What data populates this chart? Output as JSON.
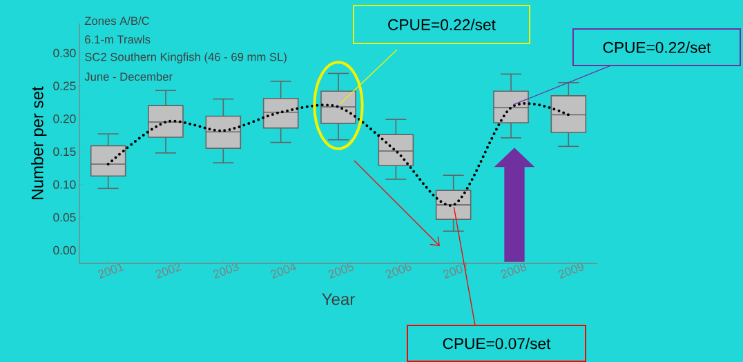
{
  "chart_data": {
    "type": "box",
    "categories": [
      "2001",
      "2002",
      "2003",
      "2004",
      "2005",
      "2006",
      "2007",
      "2008",
      "2009"
    ],
    "xlabel": "Year",
    "ylabel": "Number per set",
    "ylim": [
      -0.02,
      0.345
    ],
    "yticks": [
      {
        "value": 0,
        "label": "0.00"
      },
      {
        "value": 0.05,
        "label": "0.05"
      },
      {
        "value": 0.1,
        "label": "0.10"
      },
      {
        "value": 0.15,
        "label": "0.15"
      },
      {
        "value": 0.2,
        "label": "0.20"
      },
      {
        "value": 0.25,
        "label": "0.25"
      },
      {
        "value": 0.3,
        "label": "0.30"
      }
    ],
    "series": [
      {
        "type": "box",
        "color": "#c0c0c0",
        "boxes": [
          {
            "low": 0.094,
            "q1": 0.113,
            "median": 0.131,
            "q3": 0.159,
            "high": 0.177
          },
          {
            "low": 0.148,
            "q1": 0.172,
            "median": 0.195,
            "q3": 0.22,
            "high": 0.243
          },
          {
            "low": 0.133,
            "q1": 0.155,
            "median": 0.18,
            "q3": 0.204,
            "high": 0.23
          },
          {
            "low": 0.164,
            "q1": 0.186,
            "median": 0.21,
            "q3": 0.231,
            "high": 0.257
          },
          {
            "low": 0.168,
            "q1": 0.193,
            "median": 0.218,
            "q3": 0.242,
            "high": 0.269
          },
          {
            "low": 0.108,
            "q1": 0.129,
            "median": 0.151,
            "q3": 0.176,
            "high": 0.199
          },
          {
            "low": 0.029,
            "q1": 0.047,
            "median": 0.069,
            "q3": 0.091,
            "high": 0.114
          },
          {
            "low": 0.171,
            "q1": 0.194,
            "median": 0.217,
            "q3": 0.242,
            "high": 0.268
          },
          {
            "low": 0.158,
            "q1": 0.179,
            "median": 0.206,
            "q3": 0.235,
            "high": 0.255
          }
        ]
      },
      {
        "type": "line",
        "color": "#000000",
        "line_style": "dotted",
        "values": [
          0.131,
          0.195,
          0.182,
          0.21,
          0.218,
          0.151,
          0.069,
          0.217,
          0.206
        ]
      }
    ],
    "annotations": [
      "Zones A/B/C",
      "6.1-m Trawls",
      "SC2 Southern Kingfish (46 - 69 mm SL)",
      "June - December",
      {
        "text": "CPUE=0.22/set",
        "x": "2005",
        "y": 0.22
      },
      {
        "text": "CPUE=0.07/set",
        "x": "2007",
        "y": 0.07
      },
      {
        "text": "CPUE=0.22/set",
        "x": "2008",
        "y": 0.22
      }
    ]
  }
}
